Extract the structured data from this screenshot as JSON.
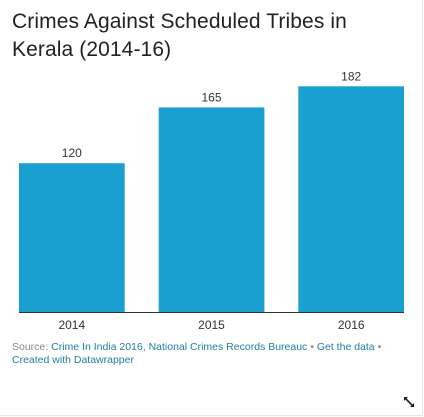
{
  "title": "Crimes Against Scheduled Tribes in Kerala (2014-16)",
  "chart_data": {
    "type": "bar",
    "title": "Crimes Against Scheduled Tribes in Kerala (2014-16)",
    "categories": [
      "2014",
      "2015",
      "2016"
    ],
    "values": [
      120,
      165,
      182
    ],
    "data_labels": [
      "120",
      "165",
      "182"
    ],
    "xlabel": "",
    "ylabel": "",
    "ylim": [
      0,
      200
    ],
    "grid": false,
    "legend": "none",
    "bar_color": "#1aa0d0"
  },
  "footer": {
    "source_prefix": "Source:",
    "source_link": "Crime In India 2016, National Crimes Records Bureauc",
    "separator": "•",
    "get_data": "Get the data",
    "created": "Created with Datawrapper"
  },
  "icons": {
    "expand": "expand-arrows-icon"
  },
  "colors": {
    "bar": "#1aa0d0",
    "link": "#1d81a2",
    "axis": "#333333"
  }
}
